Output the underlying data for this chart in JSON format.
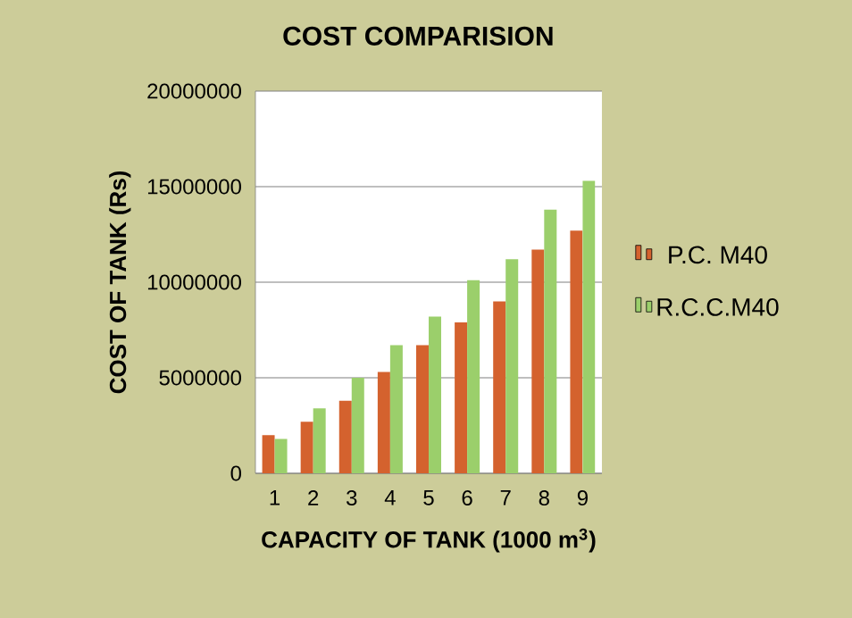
{
  "chart_data": {
    "type": "bar",
    "title": "COST COMPARISION",
    "xlabel": "CAPACITY OF TANK (1000 m$^{3}$)",
    "ylabel": "COST OF TANK  (Rs)",
    "categories": [
      "1",
      "2",
      "3",
      "4",
      "5",
      "6",
      "7",
      "8",
      "9"
    ],
    "series": [
      {
        "name": "P.C. M40",
        "color": "#d4622e",
        "values": [
          2000000,
          2700000,
          3800000,
          5300000,
          6700000,
          7900000,
          9000000,
          11700000,
          12700000
        ]
      },
      {
        "name": "R.C.C.M40",
        "color": "#9bcf6b",
        "values": [
          1800000,
          3400000,
          5000000,
          6700000,
          8200000,
          10100000,
          11200000,
          13800000,
          15300000
        ]
      }
    ],
    "ylim": [
      0,
      20000000
    ],
    "yticks": [
      0,
      5000000,
      10000000,
      15000000,
      20000000
    ],
    "grid": "y",
    "legend": "right"
  }
}
